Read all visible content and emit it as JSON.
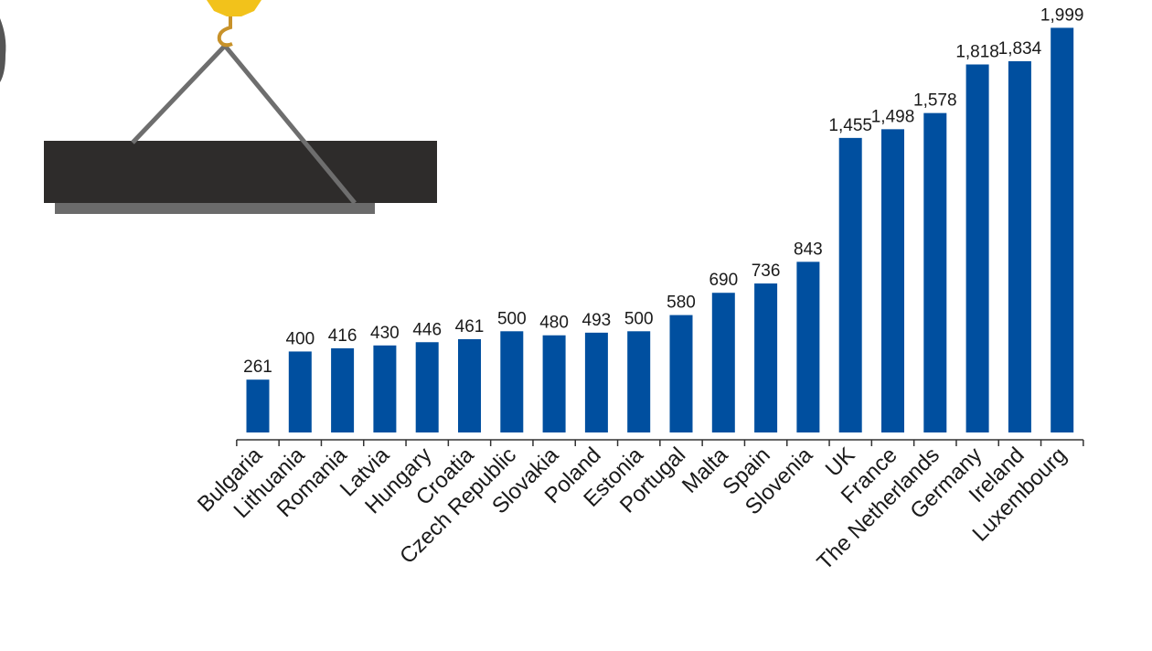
{
  "colors": {
    "bar": "#004f9f",
    "axis": "#333333",
    "beam": "#2e2c2b",
    "beam_shadow": "#6b6b6b",
    "cable": "#6e6e6e",
    "hook": "#c8922a",
    "hook_block": "#f2c21b"
  },
  "decoration": {
    "icon": "crane-hook-lifting-beam-icon"
  },
  "chart_data": {
    "type": "bar",
    "title": "",
    "xlabel": "",
    "ylabel": "",
    "ylim": [
      0,
      2000
    ],
    "grid": false,
    "legend": "none",
    "categories": [
      "Bulgaria",
      "Lithuania",
      "Romania",
      "Latvia",
      "Hungary",
      "Croatia",
      "Czech Republic",
      "Slovakia",
      "Poland",
      "Estonia",
      "Portugal",
      "Malta",
      "Spain",
      "Slovenia",
      "UK",
      "France",
      "The Netherlands",
      "Germany",
      "Ireland",
      "Luxembourg"
    ],
    "values": [
      261,
      400,
      416,
      430,
      446,
      461,
      500,
      480,
      493,
      500,
      580,
      690,
      736,
      843,
      1455,
      1498,
      1578,
      1818,
      1834,
      1999
    ],
    "value_labels": [
      "261",
      "400",
      "416",
      "430",
      "446",
      "461",
      "500",
      "480",
      "493",
      "500",
      "580",
      "690",
      "736",
      "843",
      "1,455",
      "1,498",
      "1,578",
      "1,818",
      "1,834",
      "1,999"
    ]
  }
}
